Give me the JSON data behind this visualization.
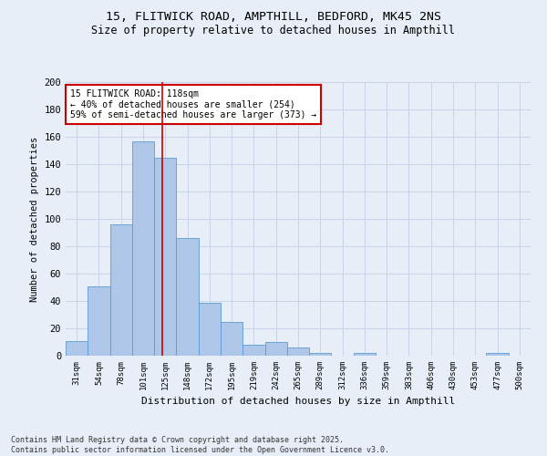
{
  "title_line1": "15, FLITWICK ROAD, AMPTHILL, BEDFORD, MK45 2NS",
  "title_line2": "Size of property relative to detached houses in Ampthill",
  "xlabel": "Distribution of detached houses by size in Ampthill",
  "ylabel": "Number of detached properties",
  "categories": [
    "31sqm",
    "54sqm",
    "78sqm",
    "101sqm",
    "125sqm",
    "148sqm",
    "172sqm",
    "195sqm",
    "219sqm",
    "242sqm",
    "265sqm",
    "289sqm",
    "312sqm",
    "336sqm",
    "359sqm",
    "383sqm",
    "406sqm",
    "430sqm",
    "453sqm",
    "477sqm",
    "500sqm"
  ],
  "values": [
    11,
    51,
    96,
    157,
    145,
    86,
    39,
    25,
    8,
    10,
    6,
    2,
    0,
    2,
    0,
    0,
    0,
    0,
    0,
    2,
    0
  ],
  "bar_color": "#aec6e8",
  "bar_edge_color": "#5b9bd5",
  "grid_color": "#c8d4e8",
  "background_color": "#e8eef8",
  "property_line_x": 3.85,
  "annotation_text": "15 FLITWICK ROAD: 118sqm\n← 40% of detached houses are smaller (254)\n59% of semi-detached houses are larger (373) →",
  "annotation_box_color": "#ffffff",
  "annotation_box_edge_color": "#cc0000",
  "vline_color": "#cc0000",
  "ylim": [
    0,
    200
  ],
  "yticks": [
    0,
    20,
    40,
    60,
    80,
    100,
    120,
    140,
    160,
    180,
    200
  ],
  "footnote": "Contains HM Land Registry data © Crown copyright and database right 2025.\nContains public sector information licensed under the Open Government Licence v3.0."
}
